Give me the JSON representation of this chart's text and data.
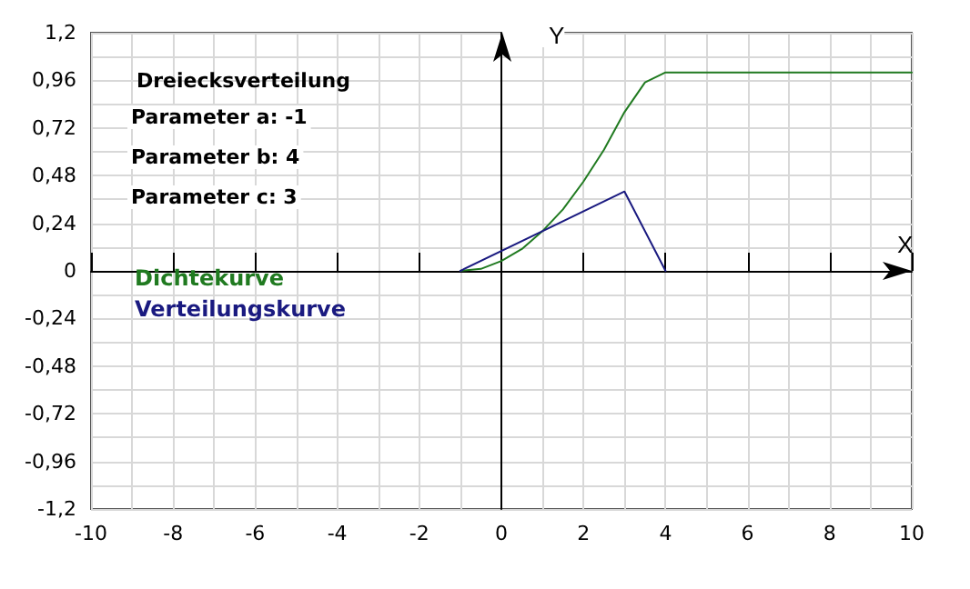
{
  "chart_data": {
    "type": "line",
    "title": "Dreiecksverteilung",
    "annotations": [
      "Parameter a: -1",
      "Parameter b: 4",
      "Parameter c: 3"
    ],
    "xlabel": "X",
    "ylabel": "Y",
    "series": [
      {
        "name": "Dichtekurve",
        "color": "#207a20",
        "x": [
          -1,
          -0.5,
          0,
          0.5,
          1,
          1.5,
          2,
          2.5,
          3,
          3.5,
          4,
          10
        ],
        "values": [
          0,
          0.01,
          0.05,
          0.11,
          0.2,
          0.31,
          0.45,
          0.61,
          0.8,
          0.95,
          1,
          1
        ]
      },
      {
        "name": "Verteilungskurve",
        "color": "#1a1a80",
        "x": [
          -1,
          3,
          4
        ],
        "values": [
          0,
          0.4,
          0
        ]
      }
    ],
    "xlim": [
      -10,
      10
    ],
    "xticks": [
      -10,
      {
        "value": -9,
        "label": null
      },
      -8,
      {
        "value": -7,
        "label": null
      },
      -6,
      {
        "value": -5,
        "label": null
      },
      -4,
      {
        "value": -3,
        "label": null
      },
      -2,
      {
        "value": -1,
        "label": null
      },
      0,
      {
        "value": 1,
        "label": null
      },
      2,
      {
        "value": 3,
        "label": null
      },
      4,
      {
        "value": 5,
        "label": null
      },
      6,
      {
        "value": 7,
        "label": null
      },
      8,
      {
        "value": 9,
        "label": null
      },
      10
    ],
    "ylim": [
      -1.2,
      1.2
    ],
    "yticks": [
      {
        "value": -1.2,
        "label": "-1,2"
      },
      {
        "value": -1.08,
        "label": null
      },
      {
        "value": -0.96,
        "label": "-0,96"
      },
      {
        "value": -0.84,
        "label": null
      },
      {
        "value": -0.72,
        "label": "-0,72"
      },
      {
        "value": -0.6,
        "label": null
      },
      {
        "value": -0.48,
        "label": "-0,48"
      },
      {
        "value": -0.36,
        "label": null
      },
      {
        "value": -0.24,
        "label": "-0,24"
      },
      {
        "value": -0.12,
        "label": null
      },
      0,
      {
        "value": 0.12,
        "label": null
      },
      {
        "value": 0.24,
        "label": "0,24"
      },
      {
        "value": 0.36,
        "label": null
      },
      {
        "value": 0.48,
        "label": "0,48"
      },
      {
        "value": 0.6,
        "label": null
      },
      {
        "value": 0.72,
        "label": "0,72"
      },
      {
        "value": 0.84,
        "label": null
      },
      {
        "value": 0.96,
        "label": "0,96"
      },
      {
        "value": 1.08,
        "label": null
      },
      {
        "value": 1.2,
        "label": "1,2"
      }
    ],
    "grid": true,
    "legend": "left",
    "marker": "none",
    "line_style": "solid"
  }
}
